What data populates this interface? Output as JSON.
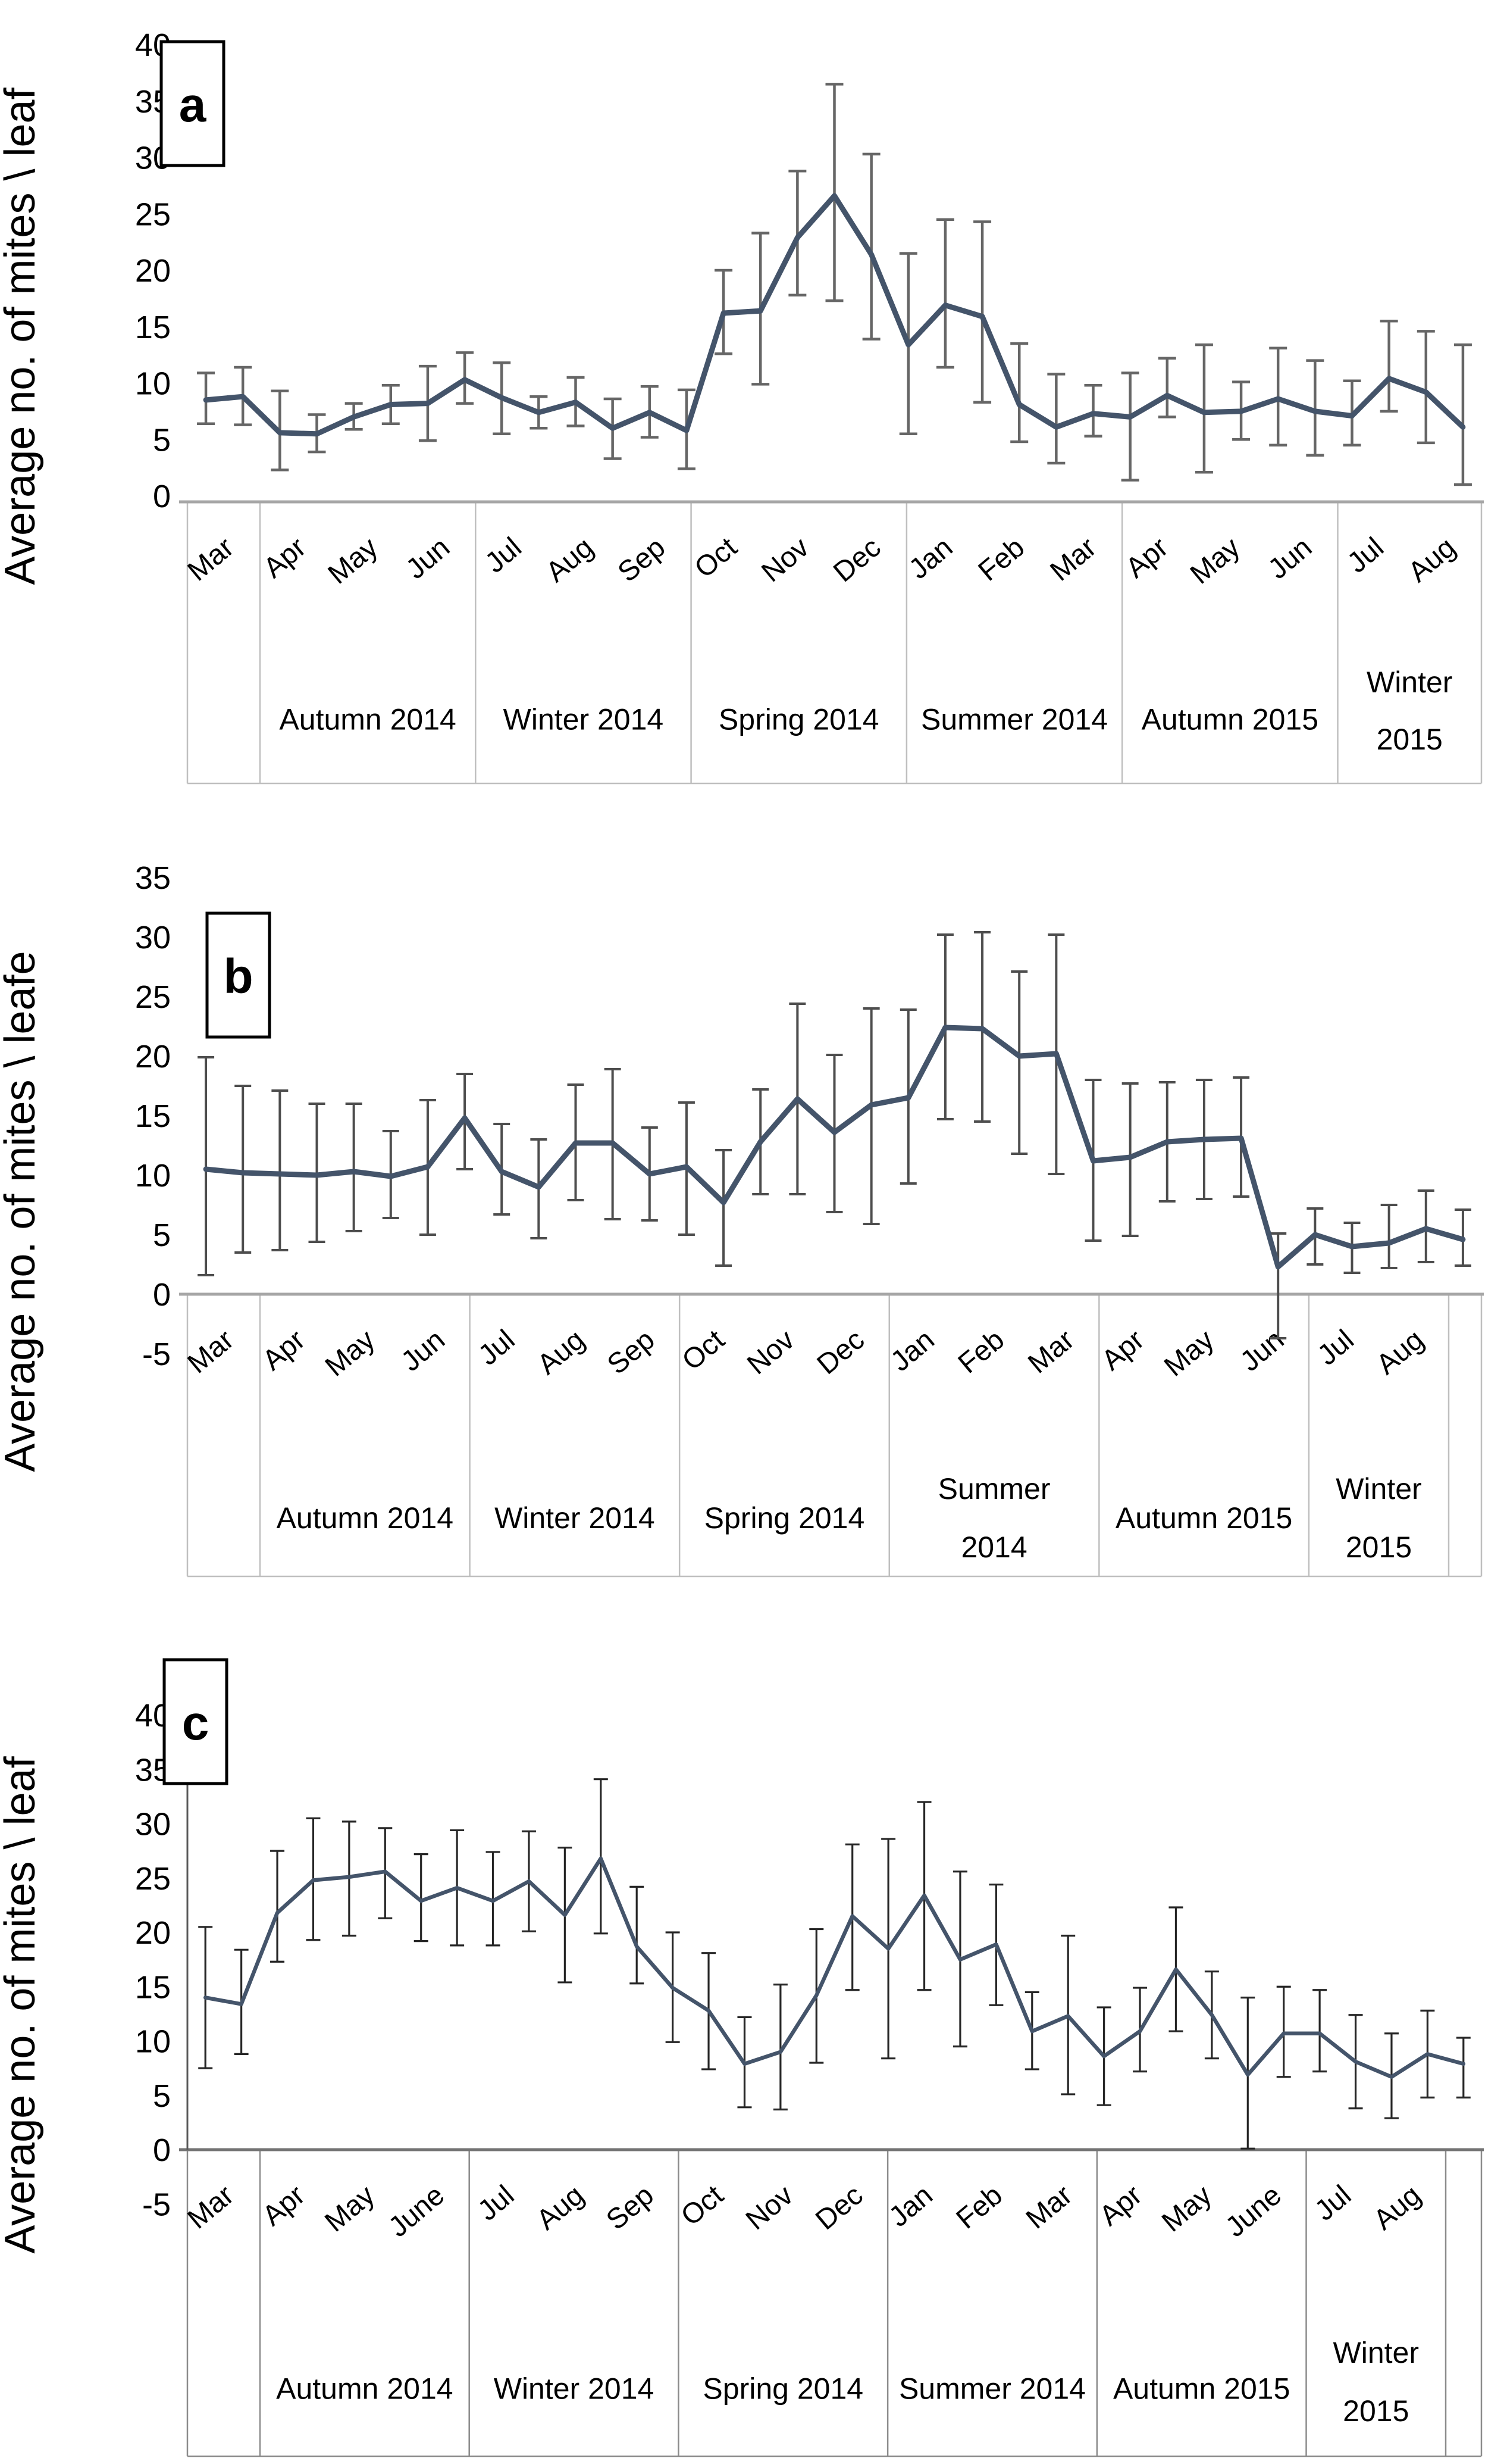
{
  "figure": {
    "description": "Three stacked line charts (panels a, b, c) of average mite counts per leaf with error bars, monthly from Mar 2014 to Aug 2015, grouped by season",
    "background_color": "#ffffff",
    "data_line_color": "#44546A"
  },
  "chart_data": [
    {
      "type": "line",
      "panel_label": "a",
      "ylabel": "Average no. of mites \\ leaf",
      "xlabel": "",
      "title": "",
      "ylim": [
        0,
        40
      ],
      "y_ticks": [
        40,
        35,
        30,
        25,
        20,
        15,
        10,
        5,
        0
      ],
      "grid": "off",
      "legend": "none",
      "month_labels": [
        "Mar",
        "Apr",
        "May",
        "Jun",
        "Jul",
        "Aug",
        "Sep",
        "Oct",
        "Nov",
        "Dec",
        "Jan",
        "Feb",
        "Mar",
        "Apr",
        "May",
        "Jun",
        "Jul",
        "Aug"
      ],
      "season_cells": [
        {
          "lines": [
            "Autumn 2014"
          ],
          "months": 3
        },
        {
          "lines": [
            "Winter 2014"
          ],
          "months": 3
        },
        {
          "lines": [
            "Spring 2014"
          ],
          "months": 3
        },
        {
          "lines": [
            "Summer 2014"
          ],
          "months": 3
        },
        {
          "lines": [
            "Autumn 2015"
          ],
          "months": 3
        },
        {
          "lines": [
            "Winter",
            "2015"
          ],
          "months": 2
        }
      ],
      "has_trailing_empty_cell": false,
      "values": [
        8.5,
        8.8,
        5.6,
        5.5,
        7.0,
        8.1,
        8.2,
        10.3,
        8.7,
        7.4,
        8.3,
        6.0,
        7.4,
        5.8,
        16.2,
        16.4,
        22.9,
        26.6,
        21.4,
        13.4,
        16.9,
        15.9,
        8.1,
        6.1,
        7.3,
        7.0,
        8.9,
        7.4,
        7.5,
        8.6,
        7.5,
        7.1,
        10.4,
        9.2,
        6.1
      ],
      "error_low": [
        6.4,
        6.3,
        2.3,
        3.9,
        5.9,
        6.4,
        4.9,
        8.2,
        5.5,
        6.0,
        6.2,
        3.3,
        5.2,
        2.4,
        12.6,
        9.9,
        17.8,
        17.3,
        13.9,
        5.5,
        11.4,
        8.3,
        4.8,
        2.9,
        5.3,
        1.4,
        7.0,
        2.1,
        5.0,
        4.5,
        3.6,
        4.5,
        7.5,
        4.7,
        1.0
      ],
      "error_high": [
        10.9,
        11.4,
        9.3,
        7.2,
        8.2,
        9.8,
        11.5,
        12.7,
        11.8,
        8.8,
        10.5,
        8.6,
        9.7,
        9.4,
        20.0,
        23.3,
        28.8,
        36.5,
        30.3,
        21.5,
        24.5,
        24.3,
        13.5,
        10.8,
        9.8,
        10.9,
        12.2,
        13.4,
        10.1,
        13.1,
        12.0,
        10.2,
        15.5,
        14.6,
        13.4
      ],
      "line_color": "#44546A",
      "error_bar_color": "#666666",
      "table_border_color": "#BFBFBF",
      "table_top_border_color": "#A6A6A6"
    },
    {
      "type": "line",
      "panel_label": "b",
      "ylabel": "Average no. of mites \\ leafe",
      "xlabel": "",
      "title": "",
      "ylim": [
        -5,
        35
      ],
      "y_ticks": [
        35,
        30,
        25,
        20,
        15,
        10,
        5,
        0,
        -5
      ],
      "grid": "off",
      "legend": "none",
      "month_labels": [
        "Mar",
        "Apr",
        "May",
        "Jun",
        "Jul",
        "Aug",
        "Sep",
        "Oct",
        "Nov",
        "Dec",
        "Jan",
        "Feb",
        "Mar",
        "Apr",
        "May",
        "Jun",
        "Jul",
        "Aug"
      ],
      "season_cells": [
        {
          "lines": [
            "Autumn 2014"
          ],
          "months": 3
        },
        {
          "lines": [
            "Winter 2014"
          ],
          "months": 3
        },
        {
          "lines": [
            "Spring 2014"
          ],
          "months": 3
        },
        {
          "lines": [
            "Summer",
            "2014"
          ],
          "months": 3
        },
        {
          "lines": [
            "Autumn 2015"
          ],
          "months": 3
        },
        {
          "lines": [
            "Winter",
            "2015"
          ],
          "months": 2
        }
      ],
      "has_trailing_empty_cell": true,
      "values": [
        10.5,
        10.2,
        10.1,
        10.0,
        10.3,
        9.9,
        10.7,
        14.8,
        10.3,
        9.0,
        12.7,
        12.7,
        10.1,
        10.7,
        7.7,
        12.8,
        16.4,
        13.6,
        15.9,
        16.5,
        22.4,
        22.3,
        20.0,
        20.2,
        11.2,
        11.5,
        12.8,
        13.0,
        13.1,
        2.3,
        5.0,
        4.0,
        4.3,
        5.5,
        4.6
      ],
      "error_low": [
        1.6,
        3.5,
        3.7,
        4.4,
        5.3,
        6.4,
        5.0,
        10.5,
        6.7,
        4.7,
        7.9,
        6.3,
        6.2,
        5.0,
        2.4,
        8.4,
        8.4,
        6.9,
        5.9,
        9.3,
        14.7,
        14.5,
        11.8,
        10.1,
        4.5,
        4.9,
        7.8,
        8.0,
        8.2,
        -3.7,
        2.5,
        1.8,
        2.2,
        2.7,
        2.4
      ],
      "error_high": [
        19.9,
        17.5,
        17.1,
        16.0,
        16.0,
        13.7,
        16.3,
        18.5,
        14.3,
        13.0,
        17.6,
        18.9,
        14.0,
        16.1,
        12.1,
        17.2,
        24.4,
        20.1,
        24.0,
        23.9,
        30.2,
        30.4,
        27.1,
        30.2,
        18.0,
        17.7,
        17.8,
        18.0,
        18.2,
        5.1,
        7.2,
        6.0,
        7.5,
        8.7,
        7.1
      ],
      "line_color": "#44546A",
      "error_bar_color": "#4D4D4D",
      "table_border_color": "#BFBFBF",
      "table_top_border_color": "#A6A6A6"
    },
    {
      "type": "line",
      "panel_label": "c",
      "ylabel": "Average no. of mites \\ leaf",
      "xlabel": "",
      "title": "",
      "ylim": [
        -5,
        40
      ],
      "y_ticks": [
        40,
        35,
        30,
        25,
        20,
        15,
        10,
        5,
        0,
        -5
      ],
      "grid": "off",
      "legend": "none",
      "month_labels": [
        "Mar",
        "Apr",
        "May",
        "June",
        "Jul",
        "Aug",
        "Sep",
        "Oct",
        "Nov",
        "Dec",
        "Jan",
        "Feb",
        "Mar",
        "Apr",
        "May",
        "June",
        "Jul",
        "Aug"
      ],
      "season_cells": [
        {
          "lines": [
            "Autumn 2014"
          ],
          "months": 3
        },
        {
          "lines": [
            "Winter 2014"
          ],
          "months": 3
        },
        {
          "lines": [
            "Spring 2014"
          ],
          "months": 3
        },
        {
          "lines": [
            "Summer 2014"
          ],
          "months": 3
        },
        {
          "lines": [
            "Autumn 2015"
          ],
          "months": 3
        },
        {
          "lines": [
            "Winter",
            "2015"
          ],
          "months": 2
        }
      ],
      "has_trailing_empty_cell": true,
      "values": [
        14.0,
        13.4,
        21.8,
        24.8,
        25.1,
        25.6,
        22.9,
        24.1,
        22.9,
        24.7,
        21.6,
        26.8,
        18.7,
        14.9,
        12.8,
        7.9,
        9.0,
        14.2,
        21.5,
        18.5,
        23.4,
        17.5,
        18.9,
        10.9,
        12.3,
        8.6,
        10.9,
        16.6,
        12.4,
        6.9,
        10.7,
        10.7,
        8.1,
        6.7,
        8.8,
        7.9
      ],
      "error_low": [
        7.5,
        8.8,
        17.3,
        19.3,
        19.7,
        21.3,
        19.2,
        18.8,
        18.8,
        20.1,
        15.4,
        19.9,
        15.3,
        9.9,
        7.4,
        3.9,
        3.7,
        8.0,
        14.7,
        8.4,
        14.7,
        9.5,
        13.3,
        7.4,
        5.1,
        4.1,
        7.2,
        10.9,
        8.4,
        0.1,
        6.7,
        7.2,
        3.8,
        2.9,
        4.8,
        4.8
      ],
      "error_high": [
        20.5,
        18.4,
        27.5,
        30.5,
        30.2,
        29.6,
        27.2,
        29.4,
        27.4,
        29.3,
        27.8,
        34.1,
        24.2,
        20.0,
        18.1,
        12.2,
        15.2,
        20.3,
        28.1,
        28.6,
        32.0,
        25.6,
        24.4,
        14.5,
        19.7,
        13.1,
        14.9,
        22.3,
        16.4,
        14.0,
        15.0,
        14.7,
        12.4,
        10.7,
        12.8,
        10.3
      ],
      "line_color": "#44546A",
      "error_bar_color": "#262626",
      "table_border_color": "#8C8C8C",
      "table_top_border_color": "#737373"
    }
  ]
}
